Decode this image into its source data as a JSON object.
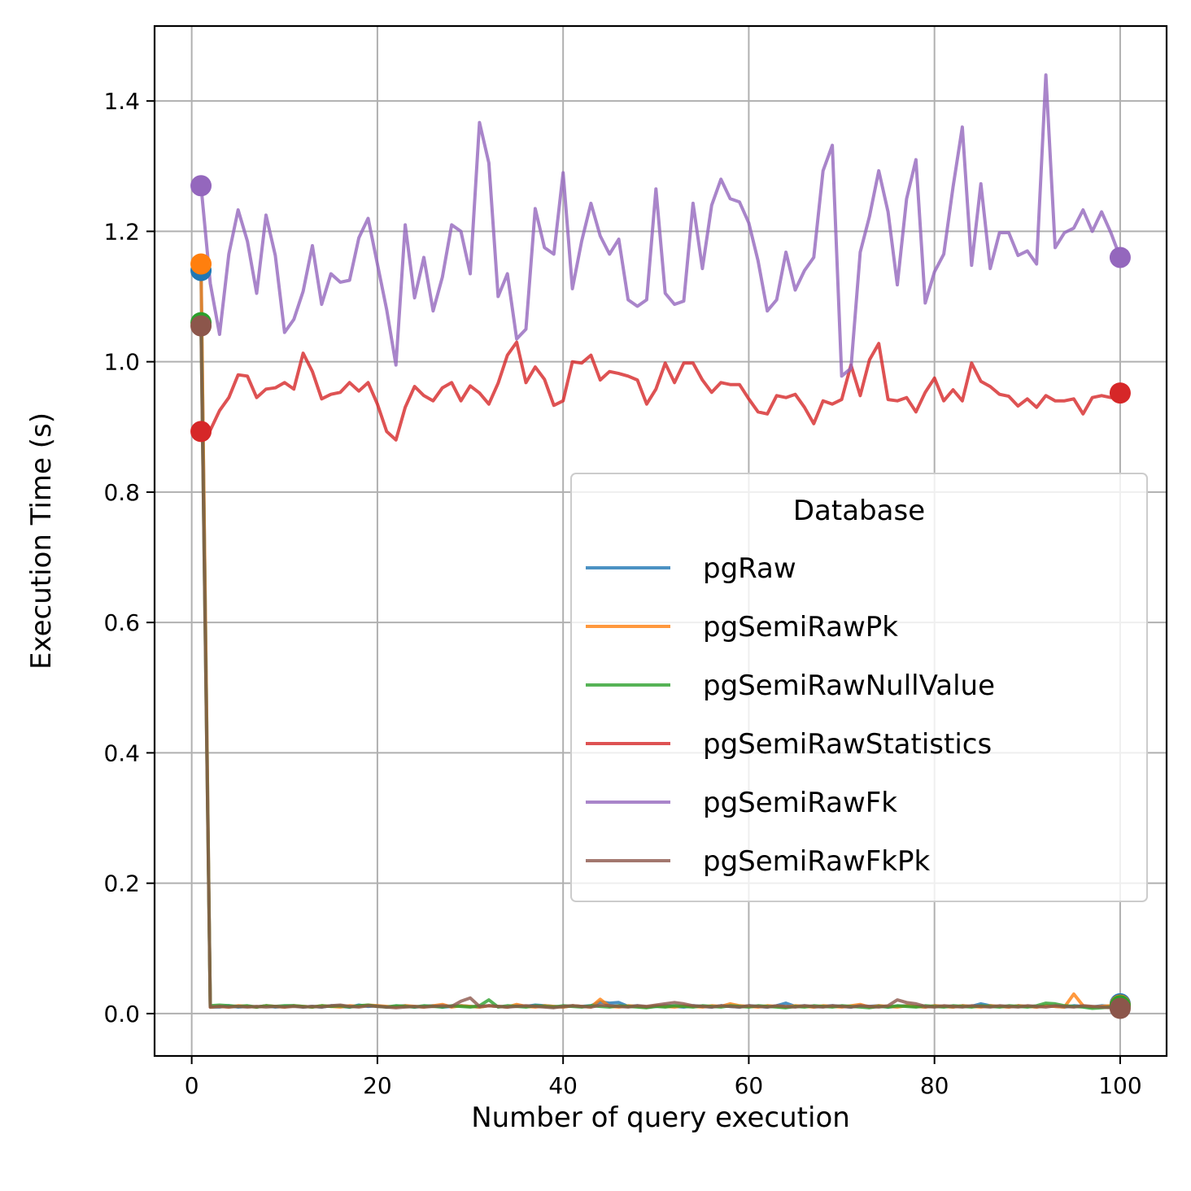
{
  "chart_data": {
    "type": "line",
    "title": "",
    "xlabel": "Number of query execution",
    "ylabel": "Execution Time (s)",
    "xlim": [
      -4,
      105
    ],
    "ylim": [
      -0.065,
      1.515
    ],
    "xticks": [
      0,
      20,
      40,
      60,
      80,
      100
    ],
    "yticks": [
      0.0,
      0.2,
      0.4,
      0.6,
      0.8,
      1.0,
      1.2,
      1.4
    ],
    "grid": true,
    "legend": {
      "title": "Database",
      "placement": "center-right"
    },
    "series": [
      {
        "name": "pgRaw",
        "color": "#1f77b4",
        "x_start": 1,
        "markers": [
          [
            1,
            1.14
          ],
          [
            100,
            0.015
          ]
        ],
        "values": [
          1.14,
          0.01,
          0.01,
          0.012,
          0.01,
          0.011,
          0.01,
          0.012,
          0.01,
          0.011,
          0.012,
          0.01,
          0.011,
          0.01,
          0.012,
          0.011,
          0.01,
          0.013,
          0.011,
          0.012,
          0.01,
          0.011,
          0.012,
          0.01,
          0.011,
          0.012,
          0.01,
          0.011,
          0.012,
          0.011,
          0.01,
          0.012,
          0.011,
          0.01,
          0.012,
          0.011,
          0.013,
          0.012,
          0.011,
          0.01,
          0.012,
          0.011,
          0.012,
          0.018,
          0.016,
          0.017,
          0.011,
          0.012,
          0.01,
          0.011,
          0.012,
          0.011,
          0.01,
          0.012,
          0.011,
          0.01,
          0.012,
          0.011,
          0.01,
          0.012,
          0.011,
          0.01,
          0.012,
          0.016,
          0.011,
          0.012,
          0.01,
          0.011,
          0.012,
          0.011,
          0.01,
          0.012,
          0.011,
          0.012,
          0.01,
          0.011,
          0.012,
          0.011,
          0.01,
          0.012,
          0.011,
          0.01,
          0.012,
          0.011,
          0.015,
          0.012,
          0.011,
          0.01,
          0.012,
          0.011,
          0.01,
          0.012,
          0.011,
          0.01,
          0.012,
          0.011,
          0.01,
          0.012,
          0.011,
          0.015
        ]
      },
      {
        "name": "pgSemiRawPk",
        "color": "#ff7f0e",
        "x_start": 1,
        "markers": [
          [
            1,
            1.15
          ],
          [
            100,
            0.013
          ]
        ],
        "values": [
          1.15,
          0.01,
          0.011,
          0.01,
          0.012,
          0.011,
          0.01,
          0.012,
          0.011,
          0.01,
          0.012,
          0.011,
          0.01,
          0.012,
          0.011,
          0.01,
          0.012,
          0.011,
          0.013,
          0.012,
          0.011,
          0.01,
          0.012,
          0.011,
          0.01,
          0.012,
          0.014,
          0.01,
          0.012,
          0.011,
          0.01,
          0.012,
          0.011,
          0.01,
          0.014,
          0.011,
          0.01,
          0.012,
          0.011,
          0.01,
          0.012,
          0.011,
          0.01,
          0.022,
          0.011,
          0.01,
          0.012,
          0.011,
          0.01,
          0.012,
          0.011,
          0.01,
          0.012,
          0.011,
          0.01,
          0.012,
          0.011,
          0.015,
          0.012,
          0.011,
          0.01,
          0.012,
          0.011,
          0.01,
          0.012,
          0.011,
          0.01,
          0.012,
          0.011,
          0.01,
          0.012,
          0.014,
          0.01,
          0.012,
          0.011,
          0.01,
          0.012,
          0.011,
          0.01,
          0.012,
          0.011,
          0.01,
          0.012,
          0.011,
          0.01,
          0.012,
          0.011,
          0.01,
          0.012,
          0.011,
          0.01,
          0.012,
          0.011,
          0.01,
          0.03,
          0.012,
          0.01,
          0.011,
          0.012,
          0.013
        ]
      },
      {
        "name": "pgSemiRawNullValue",
        "color": "#2ca02c",
        "x_start": 1,
        "markers": [
          [
            1,
            1.06
          ],
          [
            100,
            0.012
          ]
        ],
        "values": [
          1.06,
          0.012,
          0.013,
          0.012,
          0.011,
          0.012,
          0.01,
          0.012,
          0.011,
          0.012,
          0.012,
          0.011,
          0.01,
          0.012,
          0.011,
          0.012,
          0.01,
          0.012,
          0.013,
          0.011,
          0.01,
          0.012,
          0.011,
          0.01,
          0.012,
          0.011,
          0.01,
          0.012,
          0.011,
          0.01,
          0.012,
          0.021,
          0.01,
          0.012,
          0.011,
          0.01,
          0.012,
          0.011,
          0.01,
          0.012,
          0.011,
          0.01,
          0.012,
          0.011,
          0.01,
          0.012,
          0.011,
          0.01,
          0.009,
          0.011,
          0.01,
          0.012,
          0.011,
          0.01,
          0.012,
          0.011,
          0.01,
          0.012,
          0.011,
          0.01,
          0.012,
          0.011,
          0.01,
          0.009,
          0.011,
          0.01,
          0.012,
          0.011,
          0.01,
          0.012,
          0.011,
          0.01,
          0.009,
          0.011,
          0.01,
          0.012,
          0.011,
          0.01,
          0.012,
          0.011,
          0.01,
          0.012,
          0.011,
          0.01,
          0.012,
          0.011,
          0.01,
          0.012,
          0.011,
          0.01,
          0.012,
          0.016,
          0.015,
          0.012,
          0.011,
          0.01,
          0.008,
          0.009,
          0.01,
          0.012
        ]
      },
      {
        "name": "pgSemiRawStatistics",
        "color": "#d62728",
        "x_start": 1,
        "markers": [
          [
            1,
            0.893
          ],
          [
            100,
            0.952
          ]
        ],
        "values": [
          0.893,
          0.895,
          0.925,
          0.945,
          0.98,
          0.978,
          0.945,
          0.958,
          0.96,
          0.968,
          0.958,
          1.013,
          0.985,
          0.943,
          0.95,
          0.953,
          0.968,
          0.955,
          0.968,
          0.935,
          0.893,
          0.88,
          0.93,
          0.962,
          0.948,
          0.94,
          0.96,
          0.968,
          0.94,
          0.963,
          0.952,
          0.935,
          0.967,
          1.01,
          1.03,
          0.968,
          0.992,
          0.973,
          0.933,
          0.94,
          1.0,
          0.998,
          1.01,
          0.972,
          0.985,
          0.982,
          0.978,
          0.972,
          0.935,
          0.958,
          0.998,
          0.968,
          0.998,
          0.998,
          0.972,
          0.953,
          0.968,
          0.965,
          0.965,
          0.943,
          0.923,
          0.92,
          0.948,
          0.945,
          0.95,
          0.93,
          0.905,
          0.94,
          0.935,
          0.942,
          0.995,
          0.948,
          1.003,
          1.028,
          0.942,
          0.94,
          0.945,
          0.923,
          0.953,
          0.975,
          0.94,
          0.957,
          0.94,
          0.998,
          0.97,
          0.962,
          0.95,
          0.947,
          0.932,
          0.943,
          0.93,
          0.948,
          0.94,
          0.94,
          0.943,
          0.92,
          0.945,
          0.948,
          0.945,
          0.952
        ]
      },
      {
        "name": "pgSemiRawFk",
        "color": "#9467bd",
        "x_start": 1,
        "markers": [
          [
            1,
            1.27
          ],
          [
            100,
            1.16
          ]
        ],
        "values": [
          1.27,
          1.12,
          1.042,
          1.165,
          1.233,
          1.185,
          1.105,
          1.225,
          1.163,
          1.045,
          1.065,
          1.108,
          1.178,
          1.088,
          1.135,
          1.122,
          1.125,
          1.19,
          1.22,
          1.15,
          1.08,
          0.995,
          1.21,
          1.098,
          1.16,
          1.078,
          1.13,
          1.21,
          1.2,
          1.135,
          1.367,
          1.305,
          1.1,
          1.135,
          1.035,
          1.05,
          1.235,
          1.175,
          1.165,
          1.29,
          1.112,
          1.185,
          1.243,
          1.193,
          1.165,
          1.188,
          1.095,
          1.085,
          1.095,
          1.265,
          1.105,
          1.088,
          1.093,
          1.243,
          1.143,
          1.24,
          1.28,
          1.25,
          1.245,
          1.213,
          1.155,
          1.078,
          1.095,
          1.168,
          1.11,
          1.14,
          1.16,
          1.293,
          1.332,
          0.978,
          0.99,
          1.168,
          1.223,
          1.293,
          1.23,
          1.118,
          1.25,
          1.31,
          1.09,
          1.138,
          1.165,
          1.268,
          1.36,
          1.148,
          1.273,
          1.143,
          1.198,
          1.198,
          1.163,
          1.17,
          1.15,
          1.44,
          1.175,
          1.198,
          1.205,
          1.233,
          1.2,
          1.23,
          1.198,
          1.16
        ]
      },
      {
        "name": "pgSemiRawFkPk",
        "color": "#8c564b",
        "x_start": 1,
        "markers": [
          [
            1,
            1.055
          ],
          [
            100,
            0.008
          ]
        ],
        "values": [
          1.055,
          0.01,
          0.011,
          0.01,
          0.011,
          0.01,
          0.011,
          0.01,
          0.011,
          0.01,
          0.011,
          0.01,
          0.011,
          0.01,
          0.012,
          0.013,
          0.011,
          0.01,
          0.012,
          0.011,
          0.01,
          0.009,
          0.01,
          0.011,
          0.01,
          0.011,
          0.012,
          0.011,
          0.019,
          0.024,
          0.011,
          0.012,
          0.011,
          0.01,
          0.011,
          0.012,
          0.011,
          0.01,
          0.009,
          0.011,
          0.012,
          0.011,
          0.01,
          0.013,
          0.012,
          0.011,
          0.01,
          0.012,
          0.011,
          0.013,
          0.015,
          0.017,
          0.015,
          0.012,
          0.011,
          0.01,
          0.012,
          0.011,
          0.01,
          0.012,
          0.011,
          0.01,
          0.012,
          0.011,
          0.01,
          0.012,
          0.011,
          0.01,
          0.012,
          0.011,
          0.01,
          0.012,
          0.011,
          0.01,
          0.012,
          0.021,
          0.017,
          0.015,
          0.011,
          0.01,
          0.012,
          0.011,
          0.01,
          0.012,
          0.011,
          0.01,
          0.012,
          0.011,
          0.01,
          0.012,
          0.011,
          0.01,
          0.012,
          0.011,
          0.01,
          0.012,
          0.011,
          0.01,
          0.009,
          0.008
        ]
      }
    ]
  }
}
